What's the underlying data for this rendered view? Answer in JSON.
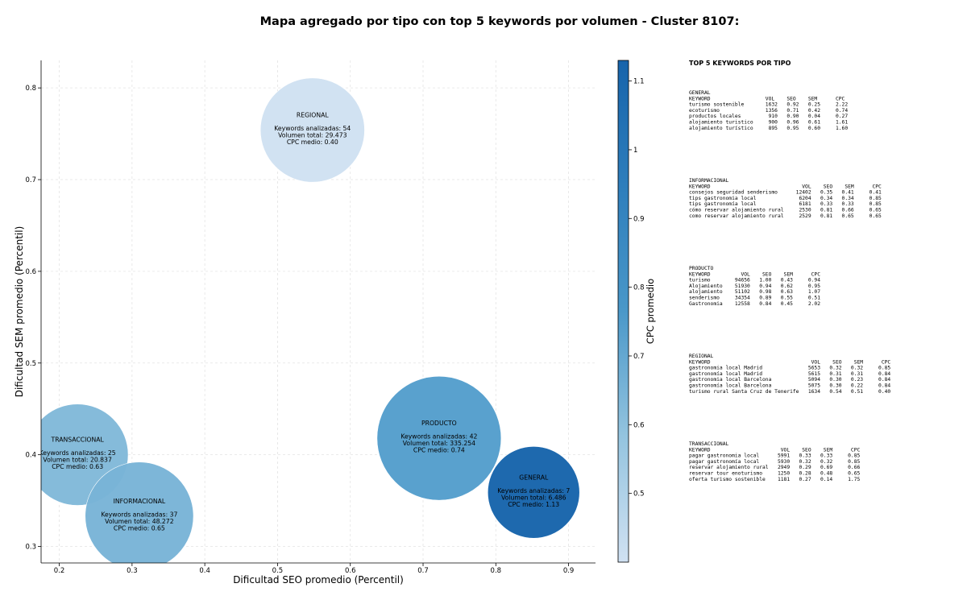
{
  "chart_data": {
    "type": "scatter",
    "title": "Mapa agregado por tipo con top 5 keywords por volumen - Cluster 8107:",
    "xlabel": "Dificultad SEO promedio (Percentil)",
    "ylabel": "Dificultad SEM promedio (Percentil)",
    "xlim": [
      0.175,
      0.937
    ],
    "ylim": [
      0.282,
      0.83
    ],
    "x_ticks": [
      0.2,
      0.3,
      0.4,
      0.5,
      0.6,
      0.7,
      0.8,
      0.9
    ],
    "y_ticks": [
      0.3,
      0.4,
      0.5,
      0.6,
      0.7,
      0.8
    ],
    "grid": true,
    "colorbar": {
      "label": "CPC promedio",
      "min": 0.4,
      "max": 1.13,
      "ticks": [
        0.5,
        0.6,
        0.7,
        0.8,
        0.9,
        1.0,
        1.1
      ],
      "colormap": [
        "#d0e1f2",
        "#94c4df",
        "#4a98c9",
        "#2e7ebc",
        "#1764ab"
      ]
    },
    "bubbles": [
      {
        "type": "REGIONAL",
        "x": 0.548,
        "y": 0.754,
        "keywords": 54,
        "volume": "29.473",
        "cpc": 0.4,
        "lines": [
          "REGIONAL",
          "Keywords analizadas: 54",
          "Volumen total: 29.473",
          "CPC medio: 0.40"
        ]
      },
      {
        "type": "TRANSACCIONAL",
        "x": 0.225,
        "y": 0.4,
        "keywords": 25,
        "volume": "20.837",
        "cpc": 0.63,
        "lines": [
          "TRANSACCIONAL",
          "Keywords analizadas: 25",
          "Volumen total: 20.837",
          "CPC medio: 0.63"
        ]
      },
      {
        "type": "INFORMACIONAL",
        "x": 0.31,
        "y": 0.333,
        "keywords": 37,
        "volume": "48.272",
        "cpc": 0.65,
        "lines": [
          "INFORMACIONAL",
          "Keywords analizadas: 37",
          "Volumen total: 48.272",
          "CPC medio: 0.65"
        ]
      },
      {
        "type": "PRODUCTO",
        "x": 0.722,
        "y": 0.418,
        "keywords": 42,
        "volume": "335.254",
        "cpc": 0.74,
        "lines": [
          "PRODUCTO",
          "Keywords analizadas: 42",
          "Volumen total: 335.254",
          "CPC medio: 0.74"
        ]
      },
      {
        "type": "GENERAL",
        "x": 0.852,
        "y": 0.359,
        "keywords": 7,
        "volume": "6.486",
        "cpc": 1.13,
        "lines": [
          "GENERAL",
          "Keywords analizadas: 7",
          "Volumen total: 6.486",
          "CPC medio: 1.13"
        ]
      }
    ]
  },
  "panel": {
    "title": "TOP 5 KEYWORDS POR TIPO",
    "sections": [
      {
        "name": "GENERAL",
        "header": "KEYWORD                  VOL    SEO    SEM      CPC",
        "rows": [
          "turismo sostenible       1632   0.92   0.25     2.22",
          "ecoturismo               1356   0.71   0.42     0.74",
          "productos locales         910   0.90   0.04     0.27",
          "alojamiento turistico     900   0.96   0.61     1.61",
          "alojamiento turístico     895   0.95   0.60     1.60"
        ]
      },
      {
        "name": "INFORMACIONAL",
        "header": "KEYWORD                              VOL    SEO    SEM      CPC",
        "rows": [
          "consejos seguridad senderismo      12402   0.35   0.41     0.41",
          "tips gastronomia local              6204   0.34   0.34     0.85",
          "tips gastronomía local              6181   0.33   0.33     0.85",
          "cómo reservar alojamiento rural     2530   0.81   0.66     0.65",
          "como reservar alojamiento rural     2529   0.81   0.65     0.65"
        ]
      },
      {
        "name": "PRODUCTO",
        "header": "KEYWORD          VOL    SEO    SEM      CPC",
        "rows": [
          "turismo        94656   1.00   0.43     0.94",
          "Alojamiento    51930   0.94   0.62     0.95",
          "alojamiento    51102   0.98   0.63     1.07",
          "senderismo     34354   0.89   0.55     0.51",
          "Gastronomia    12558   0.84   0.45     2.02"
        ]
      },
      {
        "name": "REGIONAL",
        "header": "KEYWORD                                 VOL    SEO    SEM      CPC",
        "rows": [
          "gastronomia local Madrid               5653   0.32   0.32     0.85",
          "gastronomía local Madrid               5615   0.31   0.31     0.84",
          "gastronomia local Barcelona            5094   0.30   0.23     0.84",
          "gastronomía local Barcelona            5075   0.30   0.22     0.84",
          "turismo rural Santa Cruz de Tenerife   1634   0.54   0.51     0.40"
        ]
      },
      {
        "name": "TRANSACCIONAL",
        "header": "KEYWORD                       VOL    SEO    SEM      CPC",
        "rows": [
          "pagar gastronomia local      5991   0.33   0.33     0.85",
          "pagar gastronomía local      5930   0.32   0.32     0.85",
          "reservar alojamiento rural   2949   0.29   0.69     0.66",
          "reservar tour enoturismo     1250   0.28   0.48     0.65",
          "oferta turismo sostenible    1181   0.27   0.14     1.75"
        ]
      }
    ]
  }
}
